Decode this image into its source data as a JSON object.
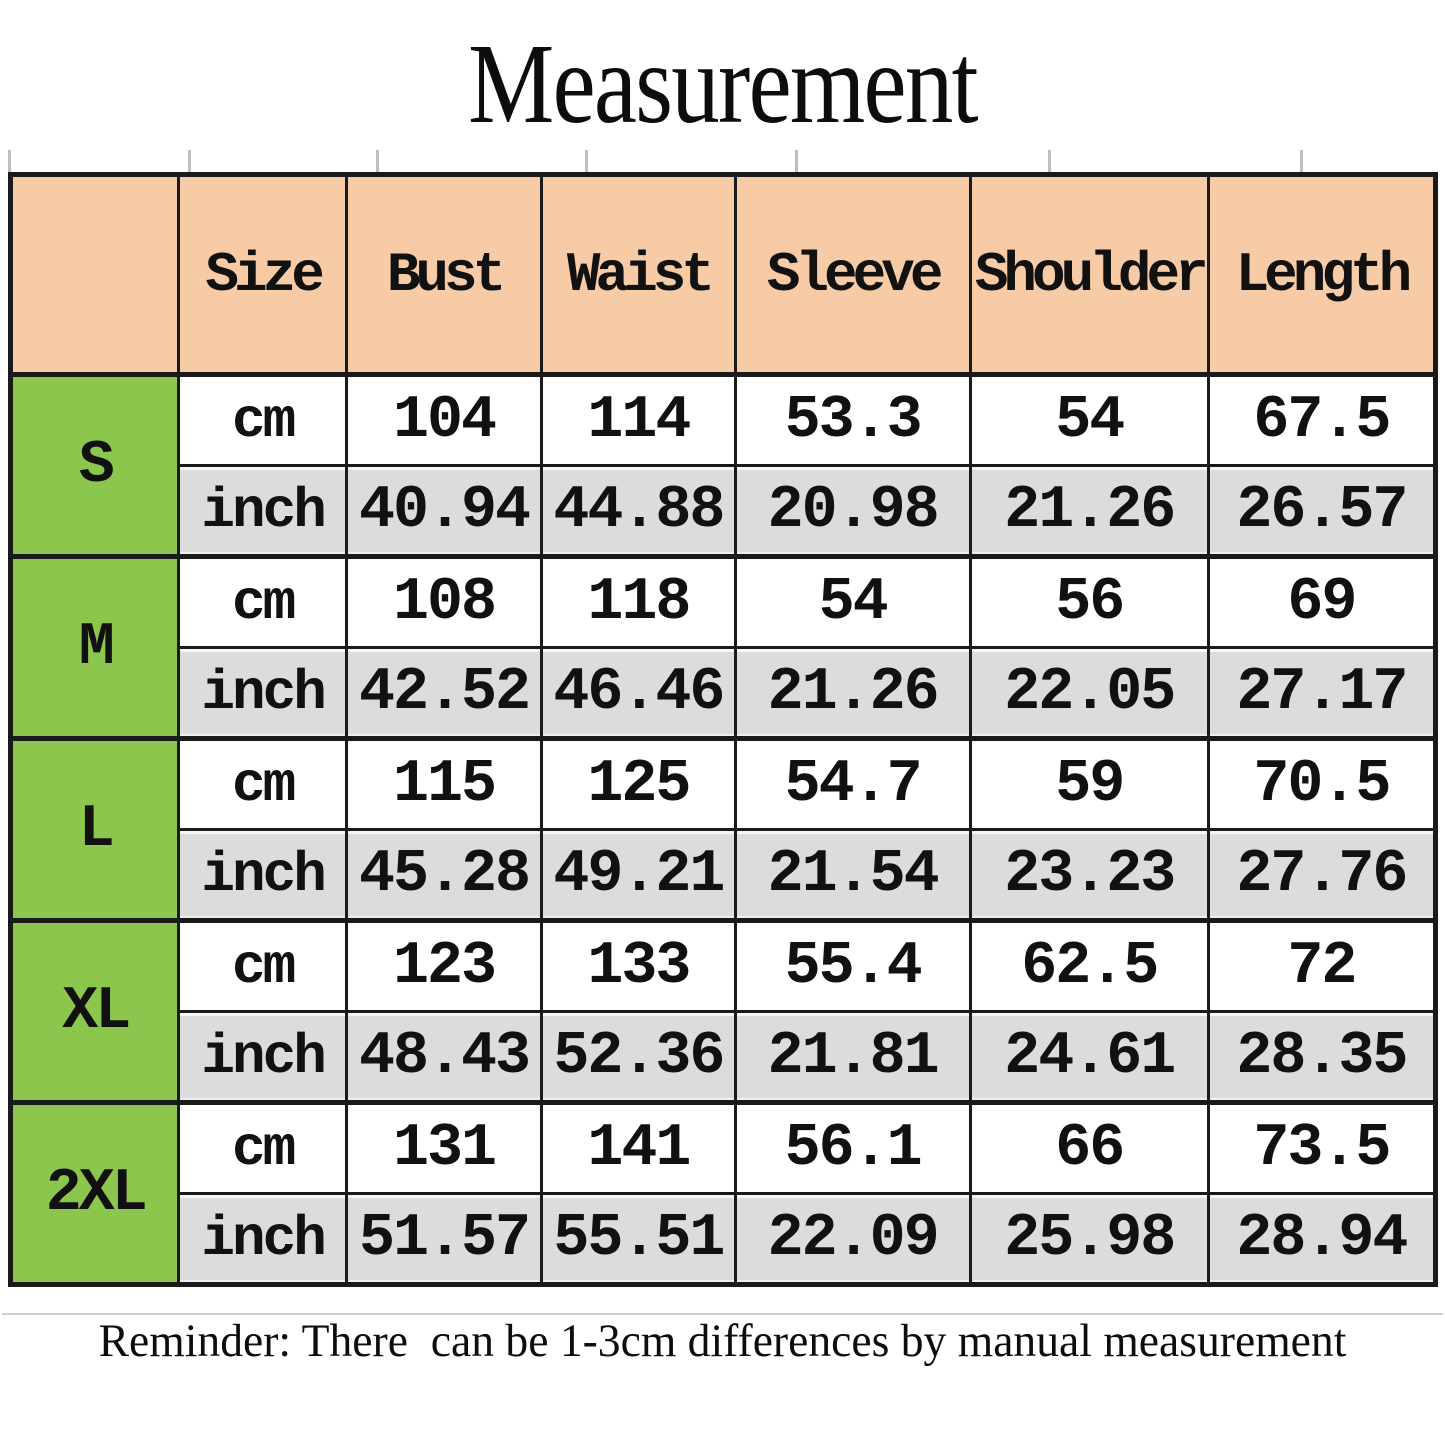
{
  "title": "Measurement",
  "reminder": "Reminder: There  can be 1-3cm differences by manual measurement",
  "table": {
    "headers": [
      "",
      "Size",
      "Bust",
      "Waist",
      "Sleeve",
      "Shoulder",
      "Length"
    ],
    "units": [
      "cm",
      "inch"
    ],
    "sizes": [
      {
        "label": "S",
        "cm": [
          "104",
          "114",
          "53.3",
          "54",
          "67.5"
        ],
        "inch": [
          "40.94",
          "44.88",
          "20.98",
          "21.26",
          "26.57"
        ]
      },
      {
        "label": "M",
        "cm": [
          "108",
          "118",
          "54",
          "56",
          "69"
        ],
        "inch": [
          "42.52",
          "46.46",
          "21.26",
          "22.05",
          "27.17"
        ]
      },
      {
        "label": "L",
        "cm": [
          "115",
          "125",
          "54.7",
          "59",
          "70.5"
        ],
        "inch": [
          "45.28",
          "49.21",
          "21.54",
          "23.23",
          "27.76"
        ]
      },
      {
        "label": "XL",
        "cm": [
          "123",
          "133",
          "55.4",
          "62.5",
          "72"
        ],
        "inch": [
          "48.43",
          "52.36",
          "21.81",
          "24.61",
          "28.35"
        ]
      },
      {
        "label": "2XL",
        "cm": [
          "131",
          "141",
          "56.1",
          "66",
          "73.5"
        ],
        "inch": [
          "51.57",
          "55.51",
          "22.09",
          "25.98",
          "28.94"
        ]
      }
    ]
  },
  "colors": {
    "header_bg": "#f6cba6",
    "size_column_bg": "#8cc64d",
    "cm_row_bg": "#ffffff",
    "inch_row_bg": "#dcdcdc",
    "border": "#1a1a1a",
    "text": "#111111"
  }
}
